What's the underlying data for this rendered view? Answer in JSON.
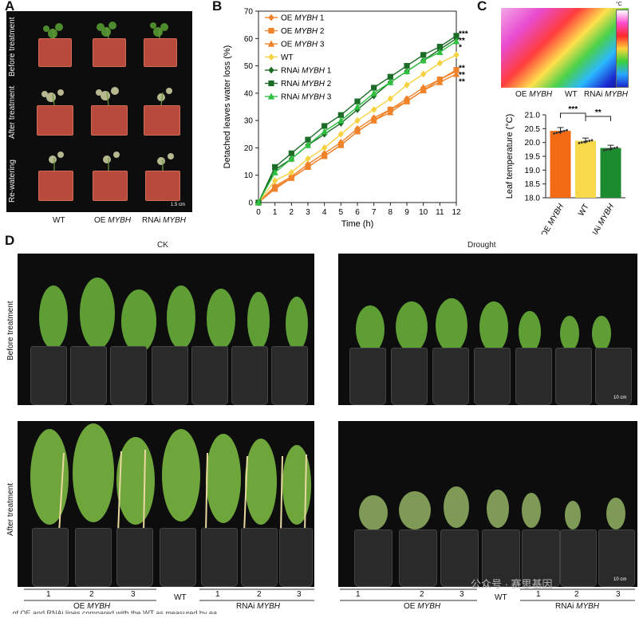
{
  "figure": {
    "panel_labels": [
      "A",
      "B",
      "C",
      "D"
    ],
    "panel_a": {
      "row_labels": [
        "Before treatment",
        "After treatment",
        "Re-watering"
      ],
      "col_labels": [
        "WT",
        "OE",
        "MYBH",
        "RNAi",
        "MYBH"
      ],
      "scale_bar": "1.5 cm"
    },
    "panel_c": {
      "col_labels": [
        "OE",
        "MYBH",
        "WT",
        "RNAi",
        "MYBH"
      ],
      "colorbar_label": "°C"
    },
    "panel_d": {
      "section_titles": [
        "CK",
        "Drought"
      ],
      "row_labels": [
        "Before treatment",
        "After treatment"
      ],
      "scale_bar": "10 cm",
      "group_numbers": [
        "1",
        "2",
        "3",
        "1",
        "2",
        "3"
      ],
      "group_wt": "WT",
      "group_oe": [
        "OE",
        "MYBH"
      ],
      "group_rnai": [
        "RNAi",
        "MYBH"
      ]
    },
    "watermark": "公众号 · 赛思基因",
    "caption_fragment": "… of OE and RNAi lines compared with the WT as measured by ea…"
  },
  "chart_data": [
    {
      "type": "line",
      "xlabel": "Time (h)",
      "ylabel": "Detached  leaves water loss (%)",
      "x": [
        0,
        1,
        2,
        3,
        4,
        5,
        6,
        7,
        8,
        9,
        10,
        11,
        12
      ],
      "xlim": [
        0,
        12
      ],
      "ylim": [
        0,
        70
      ],
      "yticks": [
        0,
        10,
        20,
        30,
        40,
        50,
        60,
        70
      ],
      "legend_position": "top-left",
      "series": [
        {
          "name": "OE MYBH 1",
          "marker": "diamond",
          "color": "#f0822a",
          "values": [
            0,
            6,
            9.5,
            14,
            18,
            22,
            27,
            31,
            34,
            38,
            42,
            45,
            48
          ]
        },
        {
          "name": "OE MYBH 2",
          "marker": "square",
          "color": "#f0822a",
          "values": [
            0,
            5.5,
            9,
            13,
            17,
            21,
            26,
            30,
            34,
            37,
            41,
            45,
            48.5
          ]
        },
        {
          "name": "OE MYBH 3",
          "marker": "triangle",
          "color": "#f0822a",
          "values": [
            0,
            5,
            9,
            13,
            17,
            21,
            26,
            30,
            33,
            37,
            41,
            44,
            47
          ]
        },
        {
          "name": "WT",
          "marker": "diamond",
          "color": "#f7d240",
          "values": [
            0,
            8,
            11,
            16,
            20,
            25,
            30,
            34,
            38,
            43,
            47,
            51,
            54
          ]
        },
        {
          "name": "RNAi MYBH 1",
          "marker": "diamond",
          "color": "#1c6b27",
          "values": [
            0,
            12,
            16,
            21,
            25,
            29,
            34,
            39,
            44,
            48,
            52,
            56,
            60
          ]
        },
        {
          "name": "RNAi MYBH 2",
          "marker": "square",
          "color": "#1c6b27",
          "values": [
            0,
            13,
            18,
            23,
            28,
            32,
            37,
            42,
            46,
            50,
            54,
            57,
            61
          ]
        },
        {
          "name": "RNAi MYBH 3",
          "marker": "triangle",
          "color": "#2fc040",
          "values": [
            0,
            11,
            16,
            21,
            26,
            30,
            35,
            40,
            44,
            48,
            52,
            55,
            59
          ]
        }
      ],
      "significance": [
        "***",
        "**",
        "*",
        "**",
        "**",
        "**"
      ]
    },
    {
      "type": "bar",
      "ylabel": "Leaf temperature (°C)",
      "categories": [
        "OE MYBH",
        "WT",
        "RNAi MYBH"
      ],
      "values": [
        20.42,
        20.06,
        19.8
      ],
      "errors": [
        0.12,
        0.1,
        0.1
      ],
      "colors": [
        "#f26a14",
        "#f7d94a",
        "#1c8a2e"
      ],
      "ylim": [
        18.0,
        21.0
      ],
      "yticks": [
        "18.0",
        "18.5",
        "19.0",
        "19.5",
        "20.0",
        "20.5",
        "21.0"
      ],
      "comparisons": [
        {
          "from": 0,
          "to": 1,
          "label": "***"
        },
        {
          "from": 1,
          "to": 2,
          "label": "**"
        }
      ]
    }
  ]
}
